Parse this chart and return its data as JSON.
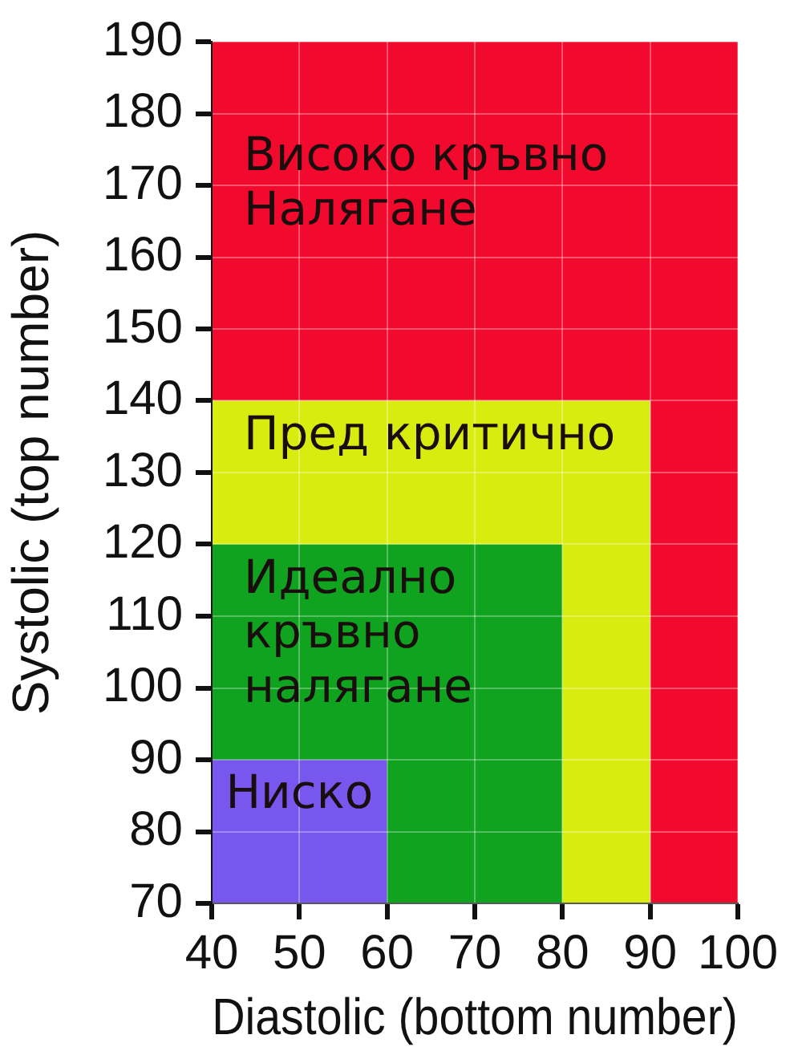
{
  "chart_data": {
    "type": "area",
    "xlabel": "Diastolic (bottom number)",
    "ylabel": "Systolic (top number)",
    "xlim": [
      40,
      100
    ],
    "ylim": [
      70,
      190
    ],
    "xticks": [
      40,
      50,
      60,
      70,
      80,
      90,
      100
    ],
    "yticks": [
      70,
      80,
      90,
      100,
      110,
      120,
      130,
      140,
      150,
      160,
      170,
      180,
      190
    ],
    "grid": true,
    "bands": [
      {
        "axis": "y",
        "from": 140,
        "to": 190,
        "label": "Високо кръвно Налягане",
        "color": "#f20a2e"
      },
      {
        "axis": "x",
        "from": 90,
        "to": 100,
        "color": "#f20a2e"
      }
    ],
    "series": [
      {
        "name": "Пред критично",
        "color": "#d8ec10",
        "x": [
          40,
          90
        ],
        "values": [
          140,
          140
        ]
      },
      {
        "name": "Идеално кръвно налягане",
        "color": "#0fa320",
        "x": [
          40,
          80
        ],
        "values": [
          120,
          120
        ]
      },
      {
        "name": "Ниско",
        "color": "#7757ee",
        "x": [
          40,
          60
        ],
        "values": [
          90,
          90
        ]
      }
    ]
  }
}
